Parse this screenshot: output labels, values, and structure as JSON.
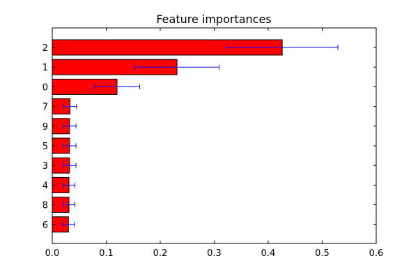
{
  "chart_data": {
    "type": "bar",
    "orientation": "horizontal",
    "title": "Feature importances",
    "xlabel": "",
    "ylabel": "",
    "xlim": [
      0.0,
      0.6
    ],
    "xticks": [
      "0.0",
      "0.1",
      "0.2",
      "0.3",
      "0.4",
      "0.5",
      "0.6"
    ],
    "categories": [
      "2",
      "1",
      "0",
      "7",
      "9",
      "5",
      "3",
      "4",
      "8",
      "6"
    ],
    "values": [
      0.426,
      0.231,
      0.12,
      0.033,
      0.032,
      0.032,
      0.032,
      0.031,
      0.031,
      0.03
    ],
    "errors": [
      0.103,
      0.078,
      0.042,
      0.012,
      0.012,
      0.012,
      0.012,
      0.011,
      0.011,
      0.011
    ],
    "bar_color": "#ff0000",
    "error_color": "#0000ff",
    "grid": false,
    "legend": "none"
  }
}
